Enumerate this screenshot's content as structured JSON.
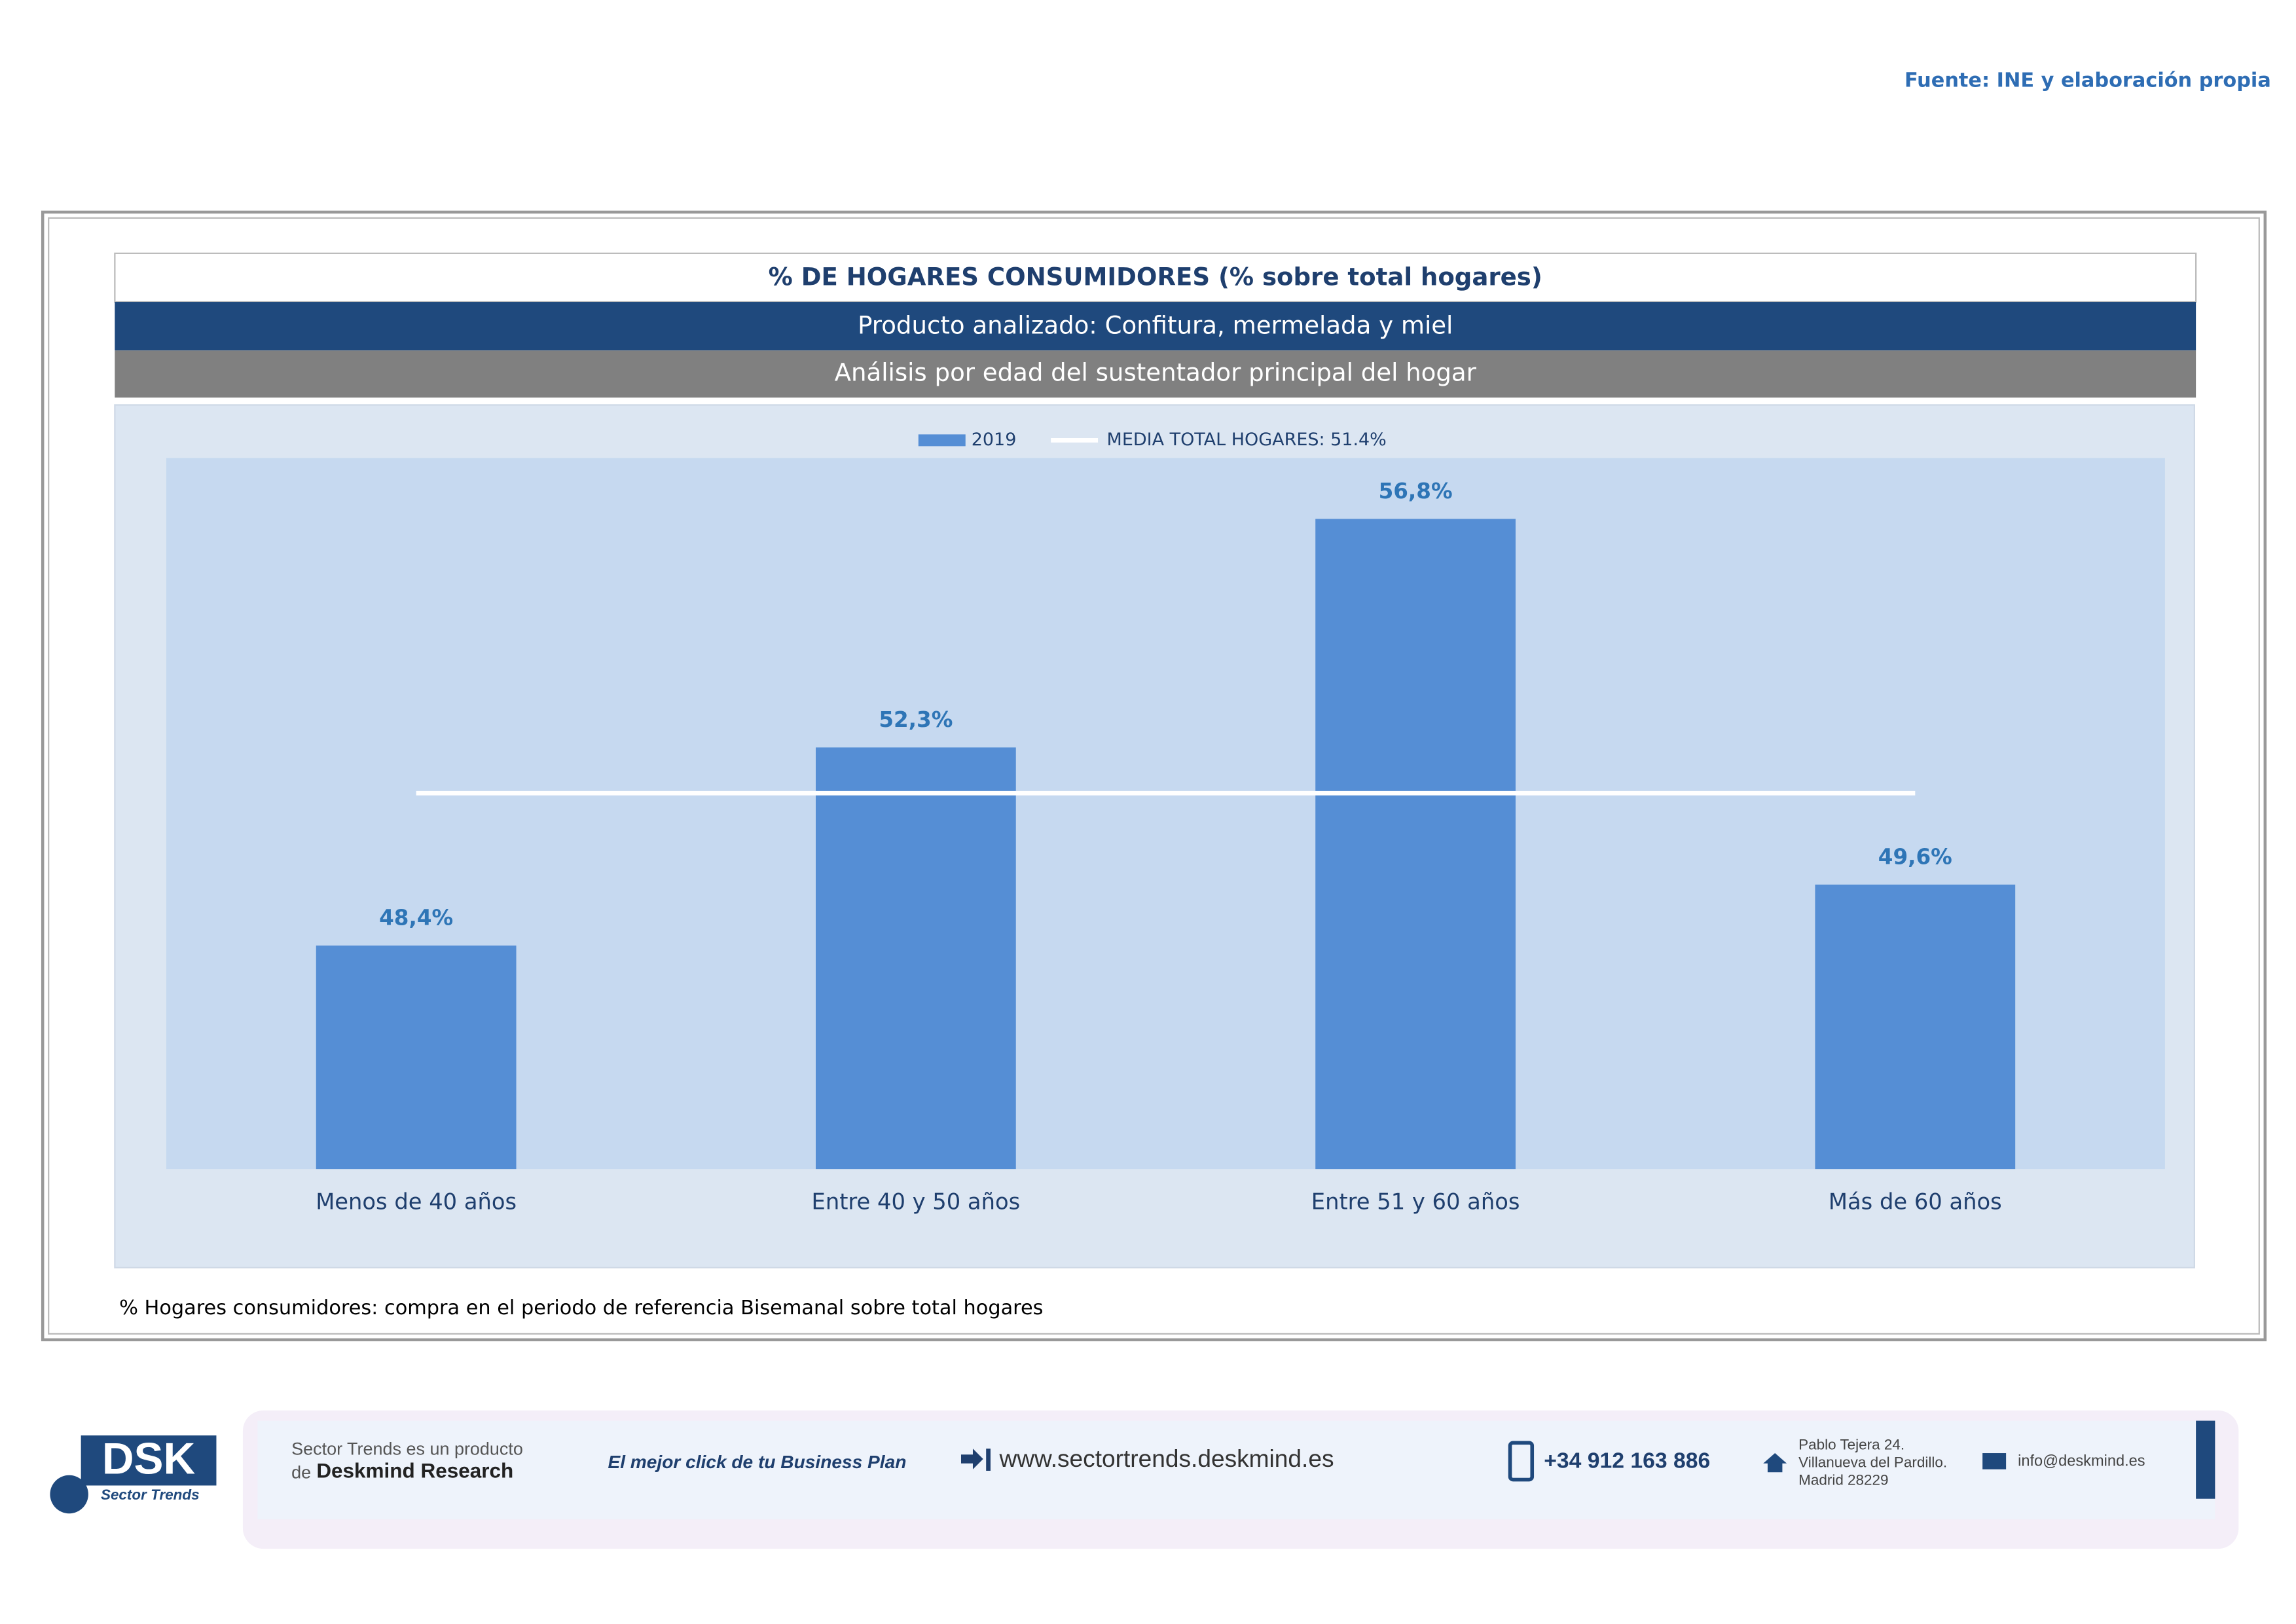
{
  "header": {
    "source": "Fuente: INE y elaboración propia",
    "title": "% DE HOGARES CONSUMIDORES (% sobre total hogares)",
    "product": "Producto analizado: Confitura, mermelada y miel",
    "analysis": "Análisis por edad del sustentador principal del hogar"
  },
  "chart_data": {
    "type": "bar",
    "categories": [
      "Menos de 40 años",
      "Entre 40 y 50 años",
      "Entre 51  y 60 años",
      "Más de 60 años"
    ],
    "series": [
      {
        "name": "2019",
        "color": "#558ed5",
        "values": [
          48.4,
          52.3,
          56.8,
          49.6
        ],
        "value_labels": [
          "48,4%",
          "52,3%",
          "56,8%",
          "49,6%"
        ]
      }
    ],
    "reference_line": {
      "label": "MEDIA TOTAL  HOGARES: 51.4%",
      "value": 51.4,
      "color": "#ffffff"
    },
    "ylim": [
      44,
      58
    ],
    "legend": "top"
  },
  "note": "% Hogares consumidores: compra en el periodo de referencia Bisemanal sobre total hogares",
  "footer": {
    "logo": "DSK",
    "logo_sub": "Sector Trends",
    "product_line": "Sector Trends es un producto",
    "product_de": "de",
    "company": "Deskmind Research",
    "slogan": "El mejor click de tu Business Plan",
    "web": "www.sectortrends.deskmind.es",
    "phone": "+34 912 163 886",
    "address": [
      "Pablo Tejera 24.",
      "Villanueva del Pardillo.",
      "Madrid 28229"
    ],
    "email": "info@deskmind.es"
  }
}
